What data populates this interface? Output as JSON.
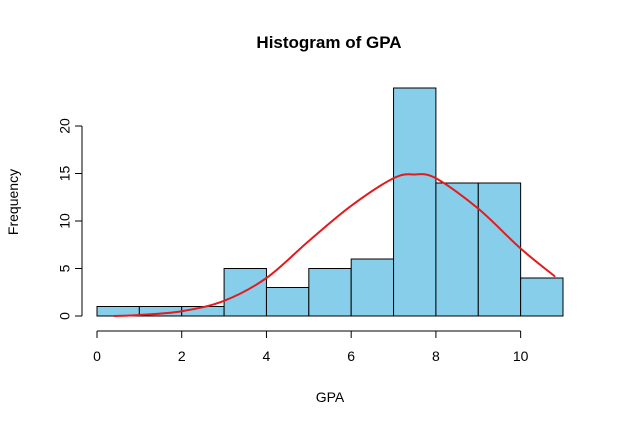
{
  "chart_data": {
    "type": "bar",
    "title": "Histogram of GPA",
    "xlabel": "GPA",
    "ylabel": "Frequency",
    "bins": [
      {
        "x0": 0,
        "x1": 1,
        "count": 1
      },
      {
        "x0": 1,
        "x1": 2,
        "count": 1
      },
      {
        "x0": 2,
        "x1": 3,
        "count": 1
      },
      {
        "x0": 3,
        "x1": 4,
        "count": 5
      },
      {
        "x0": 4,
        "x1": 5,
        "count": 3
      },
      {
        "x0": 5,
        "x1": 6,
        "count": 5
      },
      {
        "x0": 6,
        "x1": 7,
        "count": 6
      },
      {
        "x0": 7,
        "x1": 8,
        "count": 24
      },
      {
        "x0": 8,
        "x1": 9,
        "count": 14
      },
      {
        "x0": 9,
        "x1": 10,
        "count": 14
      },
      {
        "x0": 10,
        "x1": 11,
        "count": 4
      }
    ],
    "x_ticks": [
      0,
      2,
      4,
      6,
      8,
      10
    ],
    "y_ticks": [
      0,
      5,
      10,
      15,
      20
    ],
    "xlim": [
      0,
      11
    ],
    "ylim": [
      0,
      24
    ],
    "grid": false,
    "bar_color": "#87CEEB",
    "curve_color": "#E41A1C",
    "curve": {
      "x": [
        0.4,
        1.0,
        2.0,
        3.0,
        4.0,
        5.0,
        6.0,
        7.0,
        7.5,
        8.0,
        9.0,
        10.0,
        10.8
      ],
      "y": [
        0.0,
        0.1,
        0.5,
        1.6,
        4.0,
        7.9,
        11.6,
        14.5,
        14.9,
        14.5,
        11.3,
        7.1,
        4.2
      ]
    }
  }
}
